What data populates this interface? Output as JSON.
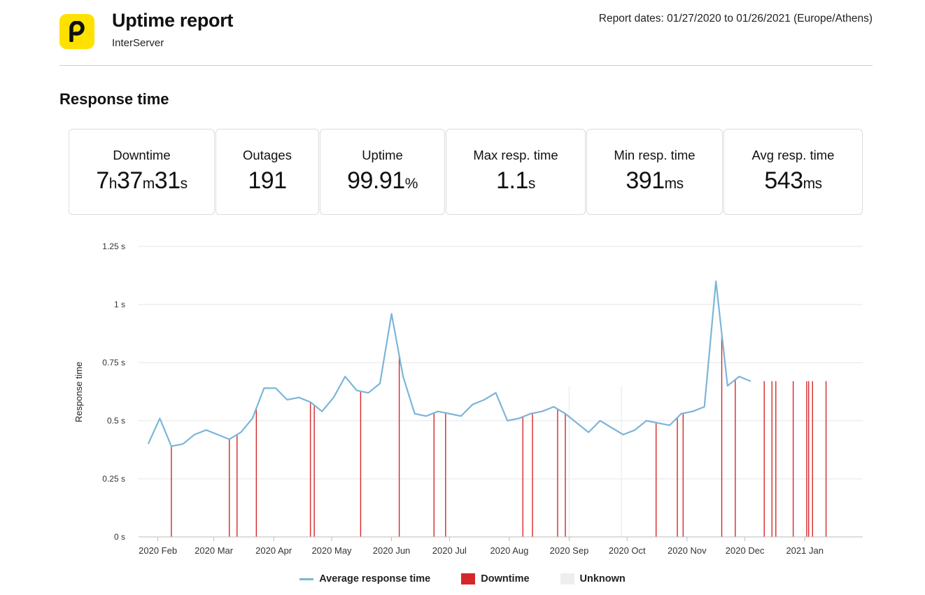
{
  "header": {
    "title": "Uptime report",
    "subtitle": "InterServer",
    "report_dates": "Report dates: 01/27/2020 to 01/26/2021 (Europe/Athens)",
    "logo_color": "#ffe100",
    "logo_icon": "p-letter-icon"
  },
  "section_title": "Response time",
  "stats": [
    {
      "label": "Downtime",
      "parts": [
        [
          "7",
          ""
        ],
        [
          "h",
          "u"
        ],
        [
          "37",
          ""
        ],
        [
          "m",
          "u"
        ],
        [
          "31",
          ""
        ],
        [
          "s",
          "u"
        ]
      ]
    },
    {
      "label": "Outages",
      "parts": [
        [
          "191",
          ""
        ]
      ]
    },
    {
      "label": "Uptime",
      "parts": [
        [
          "99.91",
          ""
        ],
        [
          "%",
          "u"
        ]
      ]
    },
    {
      "label": "Max resp. time",
      "parts": [
        [
          "1.1",
          ""
        ],
        [
          "s",
          "u"
        ]
      ]
    },
    {
      "label": "Min resp. time",
      "parts": [
        [
          "391",
          ""
        ],
        [
          "ms",
          "u"
        ]
      ]
    },
    {
      "label": "Avg resp. time",
      "parts": [
        [
          "543",
          ""
        ],
        [
          "ms",
          "u"
        ]
      ]
    }
  ],
  "legend": {
    "line_label": "Average response time",
    "downtime_label": "Downtime",
    "unknown_label": "Unknown"
  },
  "colors": {
    "line": "#7cb5d9",
    "downtime": "#d62728",
    "unknown": "#eeeeee",
    "grid": "#e6e6e6"
  },
  "chart_data": {
    "type": "line",
    "ylabel": "Response time",
    "ylim": [
      0,
      1.25
    ],
    "y_ticks": [
      {
        "value": 0,
        "label": "0 s"
      },
      {
        "value": 0.25,
        "label": "0.25 s"
      },
      {
        "value": 0.5,
        "label": "0.5 s"
      },
      {
        "value": 0.75,
        "label": "0.75 s"
      },
      {
        "value": 1,
        "label": "1 s"
      },
      {
        "value": 1.25,
        "label": "1.25 s"
      }
    ],
    "x_range": [
      "2020-01-22",
      "2021-01-31"
    ],
    "x_ticks": [
      {
        "date": "2020-02-01",
        "label": "2020 Feb"
      },
      {
        "date": "2020-03-01",
        "label": "2020 Mar"
      },
      {
        "date": "2020-04-01",
        "label": "2020 Apr"
      },
      {
        "date": "2020-05-01",
        "label": "2020 May"
      },
      {
        "date": "2020-06-01",
        "label": "2020 Jun"
      },
      {
        "date": "2020-07-01",
        "label": "2020 Jul"
      },
      {
        "date": "2020-08-01",
        "label": "2020 Aug"
      },
      {
        "date": "2020-09-01",
        "label": "2020 Sep"
      },
      {
        "date": "2020-10-01",
        "label": "2020 Oct"
      },
      {
        "date": "2020-11-01",
        "label": "2020 Nov"
      },
      {
        "date": "2020-12-01",
        "label": "2020 Dec"
      },
      {
        "date": "2021-01-01",
        "label": "2021 Jan"
      }
    ],
    "series": [
      {
        "name": "Average response time",
        "points": [
          [
            "2020-01-27",
            0.4
          ],
          [
            "2020-02-02",
            0.51
          ],
          [
            "2020-02-08",
            0.39
          ],
          [
            "2020-02-14",
            0.4
          ],
          [
            "2020-02-20",
            0.44
          ],
          [
            "2020-02-26",
            0.46
          ],
          [
            "2020-03-03",
            0.44
          ],
          [
            "2020-03-09",
            0.42
          ],
          [
            "2020-03-15",
            0.45
          ],
          [
            "2020-03-21",
            0.51
          ],
          [
            "2020-03-27",
            0.64
          ],
          [
            "2020-04-02",
            0.64
          ],
          [
            "2020-04-08",
            0.59
          ],
          [
            "2020-04-14",
            0.6
          ],
          [
            "2020-04-20",
            0.58
          ],
          [
            "2020-04-26",
            0.54
          ],
          [
            "2020-05-02",
            0.6
          ],
          [
            "2020-05-08",
            0.69
          ],
          [
            "2020-05-14",
            0.63
          ],
          [
            "2020-05-20",
            0.62
          ],
          [
            "2020-05-26",
            0.66
          ],
          [
            "2020-06-01",
            0.96
          ],
          [
            "2020-06-07",
            0.69
          ],
          [
            "2020-06-13",
            0.53
          ],
          [
            "2020-06-19",
            0.52
          ],
          [
            "2020-06-25",
            0.54
          ],
          [
            "2020-07-01",
            0.53
          ],
          [
            "2020-07-07",
            0.52
          ],
          [
            "2020-07-13",
            0.57
          ],
          [
            "2020-07-19",
            0.59
          ],
          [
            "2020-07-25",
            0.62
          ],
          [
            "2020-07-31",
            0.5
          ],
          [
            "2020-08-06",
            0.51
          ],
          [
            "2020-08-12",
            0.53
          ],
          [
            "2020-08-18",
            0.54
          ],
          [
            "2020-08-24",
            0.56
          ],
          [
            "2020-08-30",
            0.53
          ],
          [
            "2020-09-05",
            0.49
          ],
          [
            "2020-09-11",
            0.45
          ],
          [
            "2020-09-17",
            0.5
          ],
          [
            "2020-09-23",
            0.47
          ],
          [
            "2020-09-29",
            0.44
          ],
          [
            "2020-10-05",
            0.46
          ],
          [
            "2020-10-11",
            0.5
          ],
          [
            "2020-10-17",
            0.49
          ],
          [
            "2020-10-23",
            0.48
          ],
          [
            "2020-10-29",
            0.53
          ],
          [
            "2020-11-04",
            0.54
          ],
          [
            "2020-11-10",
            0.56
          ],
          [
            "2020-11-16",
            1.1
          ],
          [
            "2020-11-22",
            0.65
          ],
          [
            "2020-11-28",
            0.69
          ],
          [
            "2020-12-04",
            0.67
          ]
        ]
      }
    ],
    "downtime_dates": [
      "2020-02-08",
      "2020-03-09",
      "2020-03-13",
      "2020-03-23",
      "2020-04-20",
      "2020-04-22",
      "2020-05-16",
      "2020-06-05",
      "2020-06-23",
      "2020-06-29",
      "2020-08-08",
      "2020-08-13",
      "2020-08-26",
      "2020-08-30",
      "2020-10-16",
      "2020-10-27",
      "2020-10-30",
      "2020-11-19",
      "2020-11-26",
      "2020-12-11",
      "2020-12-15",
      "2020-12-17",
      "2020-12-26",
      "2021-01-02",
      "2021-01-03",
      "2021-01-05",
      "2021-01-12"
    ],
    "unknown_dates": [
      "2020-09-01",
      "2020-09-28"
    ]
  }
}
